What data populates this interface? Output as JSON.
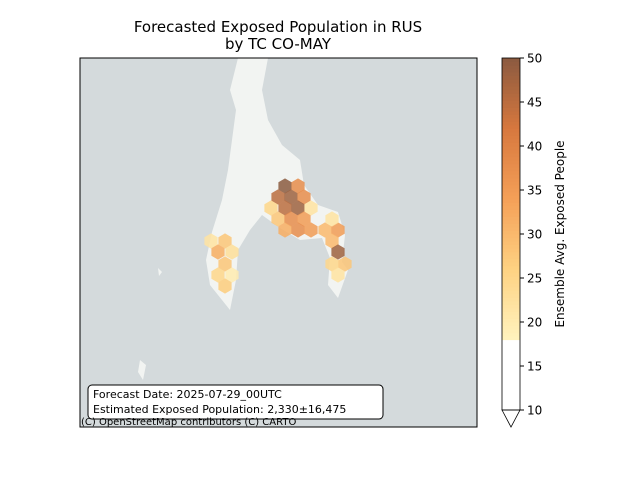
{
  "title": "Forecasted Exposed Population in RUS",
  "subtitle": "by TC CO-MAY",
  "annotation": [
    "Forecast Date: 2025-07-29_00UTC",
    "Estimated Exposed Population: 2,330±16,475"
  ],
  "attribution": "(C) OpenStreetMap contributors (C) CARTO",
  "colorbar": {
    "label": "Ensemble Avg. Exposed People",
    "lim": [
      10,
      50
    ],
    "ticks": [
      10,
      15,
      20,
      25,
      30,
      35,
      40,
      45,
      50
    ],
    "extend": "min"
  },
  "hexes": {
    "values": [
      50,
      38,
      45,
      48,
      38,
      25,
      45,
      48,
      22,
      28,
      38,
      35,
      32,
      38,
      35,
      30,
      35,
      22,
      30,
      48,
      25,
      28,
      22,
      22,
      28,
      32,
      23,
      28,
      25,
      20,
      27
    ]
  }
}
